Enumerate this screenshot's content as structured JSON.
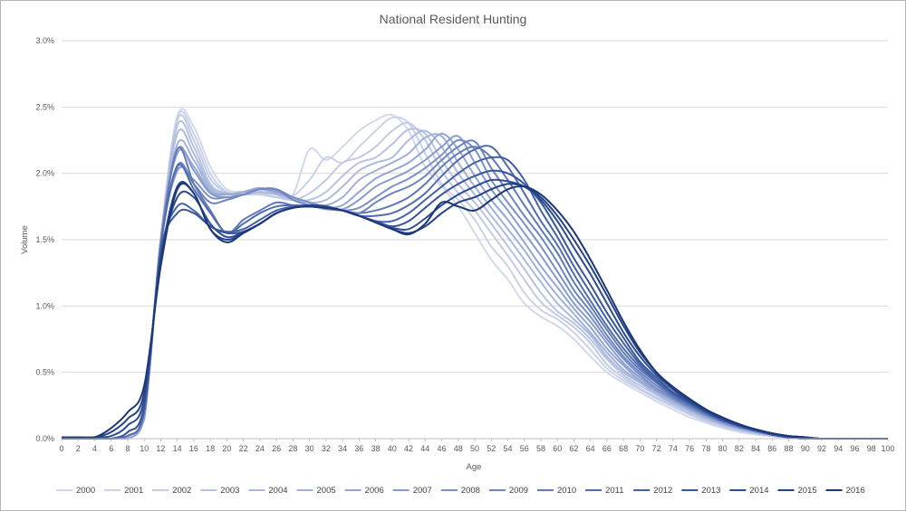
{
  "chart_data": {
    "type": "line",
    "title": "National Resident Hunting",
    "xlabel": "Age",
    "ylabel": "Volume",
    "xlim": [
      0,
      100
    ],
    "ylim": [
      0,
      3.0
    ],
    "x_ticks": [
      "0",
      "2",
      "4",
      "6",
      "8",
      "10",
      "12",
      "14",
      "16",
      "18",
      "20",
      "22",
      "24",
      "26",
      "28",
      "30",
      "32",
      "34",
      "36",
      "38",
      "40",
      "42",
      "44",
      "46",
      "48",
      "50",
      "52",
      "54",
      "56",
      "58",
      "60",
      "62",
      "64",
      "66",
      "68",
      "70",
      "72",
      "74",
      "76",
      "78",
      "80",
      "82",
      "84",
      "86",
      "88",
      "90",
      "92",
      "94",
      "96",
      "98",
      "100"
    ],
    "y_ticks": [
      {
        "value": 0.0,
        "label": "0.0%"
      },
      {
        "value": 0.5,
        "label": "0.5%"
      },
      {
        "value": 1.0,
        "label": "1.0%"
      },
      {
        "value": 1.5,
        "label": "1.5%"
      },
      {
        "value": 2.0,
        "label": "2.0%"
      },
      {
        "value": 2.5,
        "label": "2.5%"
      },
      {
        "value": 3.0,
        "label": "3.0%"
      }
    ],
    "grid": true,
    "legend_position": "bottom",
    "x": [
      0,
      2,
      4,
      6,
      8,
      10,
      12,
      14,
      16,
      18,
      20,
      22,
      24,
      26,
      28,
      30,
      32,
      34,
      36,
      38,
      40,
      42,
      44,
      46,
      48,
      50,
      52,
      54,
      56,
      58,
      60,
      62,
      64,
      66,
      68,
      70,
      72,
      74,
      76,
      78,
      80,
      82,
      84,
      86,
      88,
      90,
      92,
      94,
      96,
      98,
      100
    ],
    "series": [
      {
        "name": "2000",
        "color": "#d3d9ec",
        "values": [
          0,
          0,
          0,
          0,
          0,
          0.15,
          1.5,
          2.43,
          2.35,
          2.05,
          1.88,
          1.86,
          1.84,
          1.82,
          1.84,
          2.18,
          2.1,
          2.2,
          2.32,
          2.4,
          2.44,
          2.32,
          2.05,
          1.9,
          1.75,
          1.55,
          1.35,
          1.2,
          1.02,
          0.92,
          0.85,
          0.75,
          0.62,
          0.5,
          0.42,
          0.35,
          0.28,
          0.22,
          0.16,
          0.12,
          0.08,
          0.05,
          0.03,
          0.02,
          0.01,
          0,
          0,
          0,
          0,
          0,
          0
        ]
      },
      {
        "name": "2001",
        "color": "#cbd2e9",
        "values": [
          0,
          0,
          0,
          0,
          0,
          0.15,
          1.5,
          2.42,
          2.3,
          2.0,
          1.86,
          1.84,
          1.84,
          1.82,
          1.83,
          1.95,
          2.12,
          2.08,
          2.2,
          2.32,
          2.42,
          2.38,
          2.15,
          1.92,
          1.8,
          1.65,
          1.45,
          1.3,
          1.1,
          0.97,
          0.9,
          0.8,
          0.67,
          0.53,
          0.44,
          0.37,
          0.3,
          0.24,
          0.18,
          0.13,
          0.09,
          0.06,
          0.04,
          0.02,
          0.01,
          0,
          0,
          0,
          0,
          0,
          0
        ]
      },
      {
        "name": "2002",
        "color": "#c2cbe6",
        "values": [
          0,
          0,
          0,
          0,
          0,
          0.15,
          1.5,
          2.4,
          2.25,
          1.96,
          1.86,
          1.84,
          1.85,
          1.82,
          1.8,
          1.85,
          1.95,
          2.08,
          2.12,
          2.2,
          2.32,
          2.38,
          2.25,
          2.02,
          1.85,
          1.72,
          1.55,
          1.38,
          1.2,
          1.03,
          0.93,
          0.84,
          0.72,
          0.56,
          0.46,
          0.38,
          0.31,
          0.25,
          0.19,
          0.14,
          0.1,
          0.06,
          0.04,
          0.02,
          0.01,
          0,
          0,
          0,
          0,
          0,
          0
        ]
      },
      {
        "name": "2003",
        "color": "#b8c3e2",
        "values": [
          0,
          0,
          0,
          0,
          0,
          0.15,
          1.5,
          2.36,
          2.2,
          1.92,
          1.85,
          1.84,
          1.86,
          1.84,
          1.8,
          1.8,
          1.86,
          1.98,
          2.08,
          2.12,
          2.22,
          2.33,
          2.3,
          2.1,
          1.92,
          1.78,
          1.62,
          1.45,
          1.28,
          1.1,
          0.96,
          0.87,
          0.75,
          0.6,
          0.48,
          0.4,
          0.33,
          0.26,
          0.2,
          0.15,
          0.1,
          0.07,
          0.04,
          0.02,
          0.01,
          0,
          0,
          0,
          0,
          0,
          0
        ]
      },
      {
        "name": "2004",
        "color": "#adbade",
        "values": [
          0,
          0,
          0,
          0,
          0,
          0.15,
          1.5,
          2.3,
          2.15,
          1.9,
          1.85,
          1.84,
          1.86,
          1.84,
          1.81,
          1.78,
          1.8,
          1.9,
          2.02,
          2.08,
          2.12,
          2.25,
          2.32,
          2.2,
          2.0,
          1.84,
          1.68,
          1.52,
          1.35,
          1.18,
          1.02,
          0.9,
          0.78,
          0.62,
          0.5,
          0.42,
          0.34,
          0.27,
          0.21,
          0.15,
          0.11,
          0.07,
          0.05,
          0.03,
          0.01,
          0,
          0,
          0,
          0,
          0,
          0
        ]
      },
      {
        "name": "2005",
        "color": "#a1b0d9",
        "values": [
          0,
          0,
          0,
          0,
          0,
          0.15,
          1.5,
          2.22,
          2.1,
          1.88,
          1.84,
          1.86,
          1.88,
          1.85,
          1.82,
          1.78,
          1.76,
          1.82,
          1.95,
          2.02,
          2.08,
          2.15,
          2.27,
          2.28,
          2.08,
          1.9,
          1.74,
          1.58,
          1.42,
          1.24,
          1.08,
          0.94,
          0.8,
          0.65,
          0.52,
          0.43,
          0.35,
          0.28,
          0.22,
          0.16,
          0.11,
          0.08,
          0.05,
          0.03,
          0.01,
          0,
          0,
          0,
          0,
          0,
          0
        ]
      },
      {
        "name": "2006",
        "color": "#95a6d3",
        "values": [
          0,
          0,
          0,
          0,
          0,
          0.15,
          1.5,
          2.15,
          2.05,
          1.86,
          1.84,
          1.86,
          1.89,
          1.86,
          1.82,
          1.78,
          1.74,
          1.76,
          1.86,
          1.96,
          2.02,
          2.08,
          2.18,
          2.3,
          2.18,
          1.98,
          1.8,
          1.65,
          1.48,
          1.3,
          1.14,
          0.98,
          0.84,
          0.68,
          0.55,
          0.44,
          0.36,
          0.29,
          0.22,
          0.17,
          0.12,
          0.08,
          0.05,
          0.03,
          0.01,
          0,
          0,
          0,
          0,
          0,
          0
        ]
      },
      {
        "name": "2007",
        "color": "#889bcd",
        "values": [
          0,
          0,
          0,
          0,
          0.02,
          0.2,
          1.5,
          2.18,
          2.02,
          1.85,
          1.82,
          1.84,
          1.88,
          1.87,
          1.82,
          1.78,
          1.74,
          1.73,
          1.8,
          1.9,
          1.96,
          2.02,
          2.1,
          2.2,
          2.28,
          2.08,
          1.88,
          1.72,
          1.55,
          1.38,
          1.2,
          1.02,
          0.88,
          0.72,
          0.57,
          0.46,
          0.37,
          0.3,
          0.23,
          0.17,
          0.12,
          0.08,
          0.05,
          0.03,
          0.01,
          0,
          0,
          0,
          0,
          0,
          0
        ]
      },
      {
        "name": "2008",
        "color": "#7b90c6",
        "values": [
          0,
          0,
          0,
          0,
          0.02,
          0.2,
          1.45,
          2.02,
          1.95,
          1.82,
          1.82,
          1.84,
          1.88,
          1.88,
          1.82,
          1.78,
          1.74,
          1.72,
          1.74,
          1.82,
          1.9,
          1.96,
          2.04,
          2.14,
          2.25,
          2.18,
          1.95,
          1.78,
          1.62,
          1.45,
          1.26,
          1.07,
          0.92,
          0.75,
          0.6,
          0.48,
          0.38,
          0.3,
          0.24,
          0.18,
          0.13,
          0.09,
          0.06,
          0.03,
          0.01,
          0,
          0,
          0,
          0,
          0,
          0
        ]
      },
      {
        "name": "2009",
        "color": "#6e85bf",
        "values": [
          0,
          0,
          0,
          0,
          0.02,
          0.2,
          1.45,
          2.06,
          1.92,
          1.78,
          1.8,
          1.84,
          1.88,
          1.88,
          1.8,
          1.76,
          1.73,
          1.72,
          1.7,
          1.78,
          1.85,
          1.9,
          1.98,
          2.1,
          2.2,
          2.24,
          2.04,
          1.86,
          1.68,
          1.52,
          1.33,
          1.12,
          0.96,
          0.78,
          0.62,
          0.5,
          0.4,
          0.31,
          0.24,
          0.18,
          0.13,
          0.09,
          0.06,
          0.03,
          0.01,
          0,
          0,
          0,
          0,
          0,
          0
        ]
      },
      {
        "name": "2010",
        "color": "#6079b7",
        "values": [
          0,
          0,
          0,
          0,
          0.02,
          0.2,
          1.45,
          2.18,
          1.92,
          1.72,
          1.55,
          1.65,
          1.72,
          1.78,
          1.76,
          1.75,
          1.74,
          1.72,
          1.7,
          1.72,
          1.76,
          1.82,
          1.92,
          2.05,
          2.15,
          2.2,
          2.12,
          1.95,
          1.76,
          1.58,
          1.4,
          1.18,
          1.0,
          0.82,
          0.65,
          0.52,
          0.42,
          0.32,
          0.25,
          0.19,
          0.13,
          0.09,
          0.06,
          0.03,
          0.01,
          0,
          0,
          0,
          0,
          0,
          0
        ]
      },
      {
        "name": "2011",
        "color": "#516daf",
        "values": [
          0,
          0,
          0,
          0,
          0.02,
          0.2,
          1.45,
          2.05,
          1.88,
          1.7,
          1.55,
          1.62,
          1.7,
          1.75,
          1.76,
          1.75,
          1.74,
          1.72,
          1.68,
          1.68,
          1.7,
          1.76,
          1.85,
          1.98,
          2.1,
          2.18,
          2.2,
          2.05,
          1.85,
          1.64,
          1.46,
          1.24,
          1.04,
          0.85,
          0.68,
          0.54,
          0.43,
          0.33,
          0.26,
          0.19,
          0.14,
          0.09,
          0.06,
          0.03,
          0.01,
          0,
          0,
          0,
          0,
          0,
          0
        ]
      },
      {
        "name": "2012",
        "color": "#4461a6",
        "values": [
          0,
          0,
          0,
          0,
          0.05,
          0.25,
          1.4,
          1.75,
          1.72,
          1.6,
          1.56,
          1.58,
          1.65,
          1.72,
          1.75,
          1.76,
          1.75,
          1.72,
          1.68,
          1.64,
          1.64,
          1.7,
          1.8,
          1.9,
          2.0,
          2.08,
          2.12,
          2.1,
          1.95,
          1.72,
          1.52,
          1.3,
          1.1,
          0.9,
          0.72,
          0.56,
          0.44,
          0.34,
          0.27,
          0.2,
          0.14,
          0.1,
          0.06,
          0.03,
          0.01,
          0,
          0,
          0,
          0,
          0,
          0
        ]
      },
      {
        "name": "2013",
        "color": "#38569c",
        "values": [
          0,
          0,
          0,
          0,
          0.05,
          0.25,
          1.4,
          1.7,
          1.7,
          1.6,
          1.55,
          1.56,
          1.62,
          1.7,
          1.74,
          1.76,
          1.75,
          1.72,
          1.68,
          1.64,
          1.6,
          1.64,
          1.74,
          1.84,
          1.92,
          1.98,
          2.02,
          2.0,
          1.92,
          1.78,
          1.58,
          1.36,
          1.16,
          0.95,
          0.76,
          0.58,
          0.46,
          0.35,
          0.27,
          0.2,
          0.14,
          0.1,
          0.06,
          0.03,
          0.01,
          0,
          0,
          0,
          0,
          0,
          0
        ]
      },
      {
        "name": "2014",
        "color": "#2e4c91",
        "values": [
          0.01,
          0.01,
          0.01,
          0.02,
          0.1,
          0.3,
          1.35,
          1.82,
          1.82,
          1.62,
          1.52,
          1.56,
          1.62,
          1.7,
          1.74,
          1.76,
          1.75,
          1.72,
          1.68,
          1.63,
          1.59,
          1.58,
          1.66,
          1.76,
          1.84,
          1.9,
          1.95,
          1.94,
          1.9,
          1.8,
          1.64,
          1.44,
          1.24,
          1.02,
          0.8,
          0.62,
          0.48,
          0.37,
          0.28,
          0.21,
          0.15,
          0.1,
          0.07,
          0.04,
          0.02,
          0.01,
          0,
          0,
          0,
          0,
          0
        ]
      },
      {
        "name": "2015",
        "color": "#244286",
        "values": [
          0.01,
          0.01,
          0.01,
          0.05,
          0.15,
          0.35,
          1.35,
          1.9,
          1.85,
          1.58,
          1.5,
          1.55,
          1.62,
          1.7,
          1.74,
          1.75,
          1.74,
          1.72,
          1.68,
          1.63,
          1.58,
          1.55,
          1.6,
          1.7,
          1.78,
          1.82,
          1.88,
          1.92,
          1.9,
          1.82,
          1.68,
          1.5,
          1.3,
          1.08,
          0.85,
          0.65,
          0.5,
          0.38,
          0.29,
          0.21,
          0.15,
          0.1,
          0.07,
          0.04,
          0.02,
          0.01,
          0,
          0,
          0,
          0,
          0
        ]
      },
      {
        "name": "2016",
        "color": "#1b3778",
        "values": [
          0.01,
          0.01,
          0.01,
          0.08,
          0.2,
          0.4,
          1.3,
          1.88,
          1.85,
          1.58,
          1.48,
          1.55,
          1.62,
          1.7,
          1.74,
          1.75,
          1.74,
          1.72,
          1.68,
          1.63,
          1.58,
          1.54,
          1.62,
          1.78,
          1.75,
          1.72,
          1.8,
          1.88,
          1.9,
          1.84,
          1.72,
          1.56,
          1.35,
          1.12,
          0.88,
          0.67,
          0.5,
          0.39,
          0.3,
          0.22,
          0.16,
          0.11,
          0.07,
          0.04,
          0.02,
          0.01,
          0,
          0,
          0,
          0,
          0
        ]
      }
    ]
  }
}
